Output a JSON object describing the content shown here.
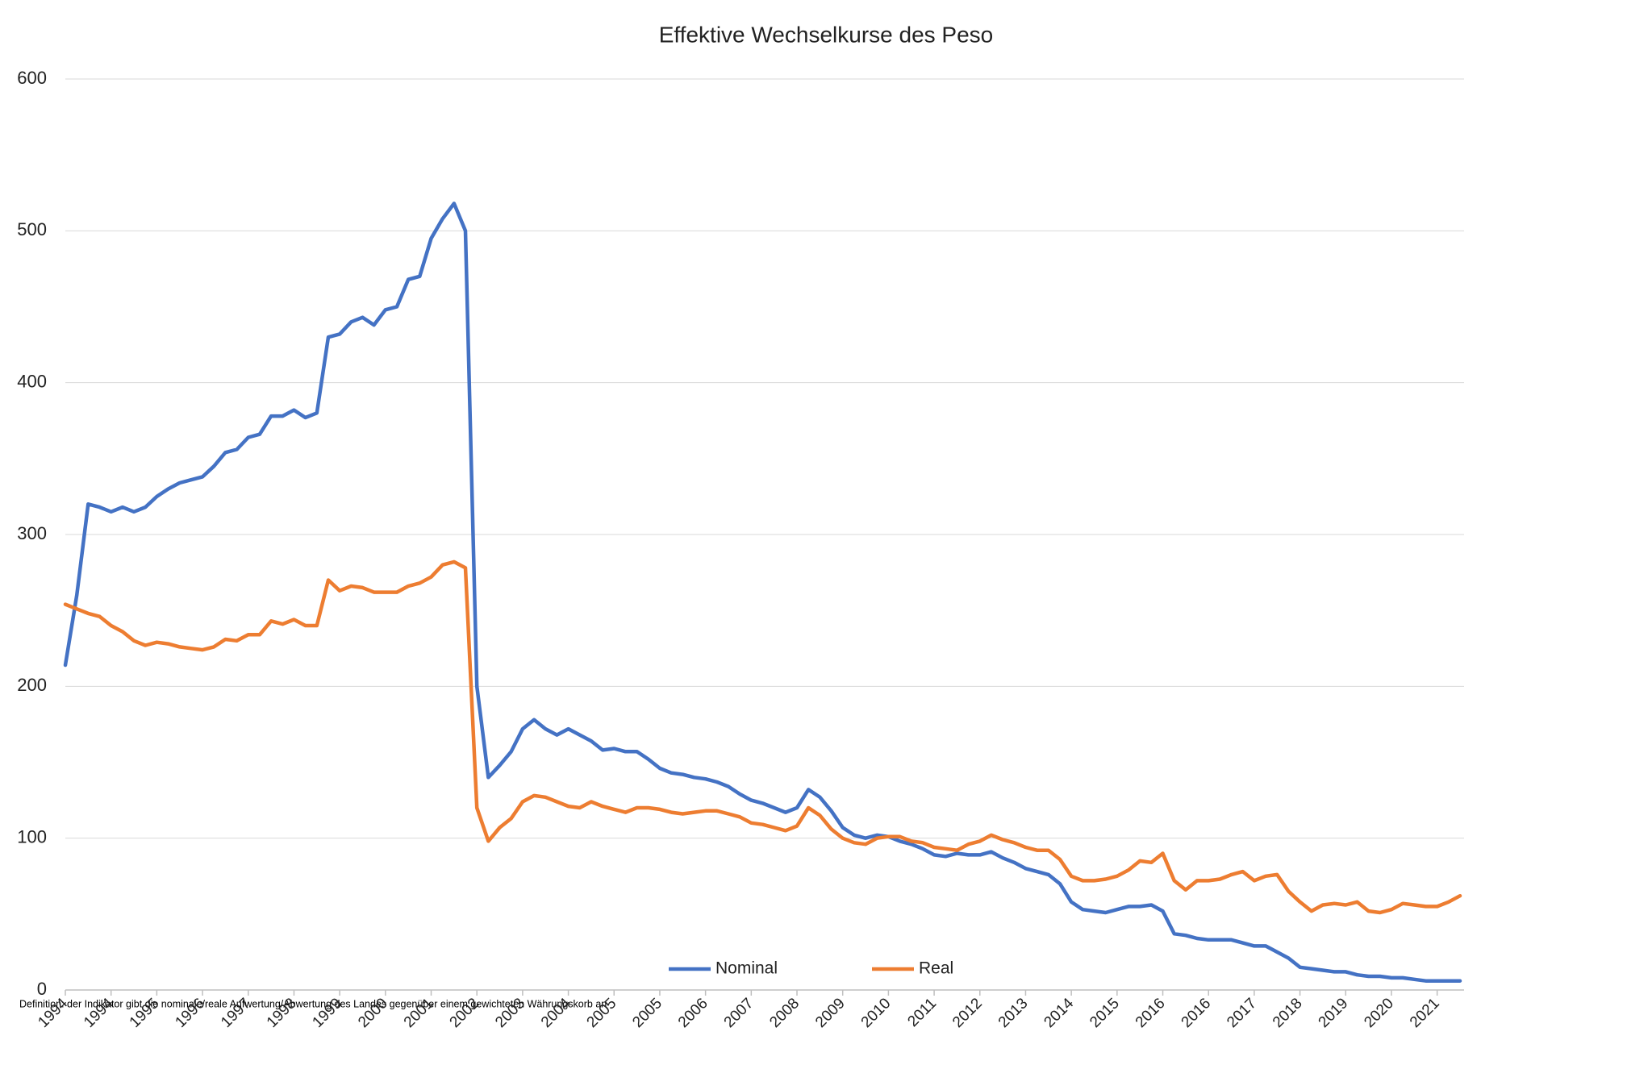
{
  "chart_data": {
    "type": "line",
    "title": "Effektive Wechselkurse des Peso",
    "note": "Definition: der Indikator gibt die nominale/reale Aufwertung/Abwertung des Landes gegenüber einem gewichteten Währungskorb an",
    "categories": [
      "1994",
      null,
      null,
      null,
      "1994",
      null,
      null,
      null,
      "1995",
      null,
      null,
      null,
      "1996",
      null,
      null,
      null,
      "1997",
      null,
      null,
      null,
      "1998",
      null,
      null,
      null,
      "1999",
      null,
      null,
      null,
      "2000",
      null,
      null,
      null,
      "2001",
      null,
      null,
      null,
      "2002",
      null,
      null,
      null,
      "2003",
      null,
      null,
      null,
      "2004",
      null,
      null,
      null,
      "2005",
      null,
      null,
      null,
      "2005",
      null,
      null,
      null,
      "2006",
      null,
      null,
      null,
      "2007",
      null,
      null,
      null,
      "2008",
      null,
      null,
      null,
      "2009",
      null,
      null,
      null,
      "2010",
      null,
      null,
      null,
      "2011",
      null,
      null,
      null,
      "2012",
      null,
      null,
      null,
      "2013",
      null,
      null,
      null,
      "2014",
      null,
      null,
      null,
      "2015",
      null,
      null,
      null,
      "2016",
      null,
      null,
      null,
      "2016",
      null,
      null,
      null,
      "2017",
      null,
      null,
      null,
      "2018",
      null,
      null,
      null,
      "2019",
      null,
      null,
      null,
      "2020",
      null,
      null,
      null,
      "2021",
      null,
      null
    ],
    "series": [
      {
        "name": "Nominal",
        "color": "#4472c4",
        "values": [
          214,
          260,
          320,
          318,
          315,
          318,
          315,
          318,
          325,
          330,
          334,
          336,
          338,
          345,
          354,
          356,
          364,
          366,
          378,
          378,
          382,
          377,
          380,
          430,
          432,
          440,
          443,
          438,
          448,
          450,
          468,
          470,
          495,
          508,
          518,
          500,
          200,
          140,
          148,
          157,
          172,
          178,
          172,
          168,
          172,
          168,
          164,
          158,
          159,
          157,
          157,
          152,
          146,
          143,
          142,
          140,
          139,
          137,
          134,
          129,
          125,
          123,
          120,
          117,
          120,
          132,
          127,
          118,
          107,
          102,
          100,
          102,
          101,
          98,
          96,
          93,
          89,
          88,
          90,
          89,
          89,
          91,
          87,
          84,
          80,
          78,
          76,
          70,
          58,
          53,
          52,
          51,
          53,
          55,
          55,
          56,
          52,
          37,
          36,
          34,
          33,
          33,
          33,
          31,
          29,
          29,
          25,
          21,
          15,
          14,
          13,
          12,
          12,
          10,
          9,
          9,
          8,
          8,
          7,
          6,
          6,
          6,
          6
        ]
      },
      {
        "name": "Real",
        "color": "#ed7d31",
        "values": [
          254,
          251,
          248,
          246,
          240,
          236,
          230,
          227,
          229,
          228,
          226,
          225,
          224,
          226,
          231,
          230,
          234,
          234,
          243,
          241,
          244,
          240,
          240,
          270,
          263,
          266,
          265,
          262,
          262,
          262,
          266,
          268,
          272,
          280,
          282,
          278,
          120,
          98,
          107,
          113,
          124,
          128,
          127,
          124,
          121,
          120,
          124,
          121,
          119,
          117,
          120,
          120,
          119,
          117,
          116,
          117,
          118,
          118,
          116,
          114,
          110,
          109,
          107,
          105,
          108,
          120,
          115,
          106,
          100,
          97,
          96,
          100,
          101,
          101,
          98,
          97,
          94,
          93,
          92,
          96,
          98,
          102,
          99,
          97,
          94,
          92,
          92,
          86,
          75,
          72,
          72,
          73,
          75,
          79,
          85,
          84,
          90,
          72,
          66,
          72,
          72,
          73,
          76,
          78,
          72,
          75,
          76,
          65,
          58,
          52,
          56,
          57,
          56,
          58,
          52,
          51,
          53,
          57,
          56,
          55,
          55,
          58,
          62
        ]
      }
    ],
    "ylim": [
      0,
      600
    ],
    "yticks": [
      0,
      100,
      200,
      300,
      400,
      500,
      600
    ],
    "grid": true,
    "legend": "bottom"
  }
}
